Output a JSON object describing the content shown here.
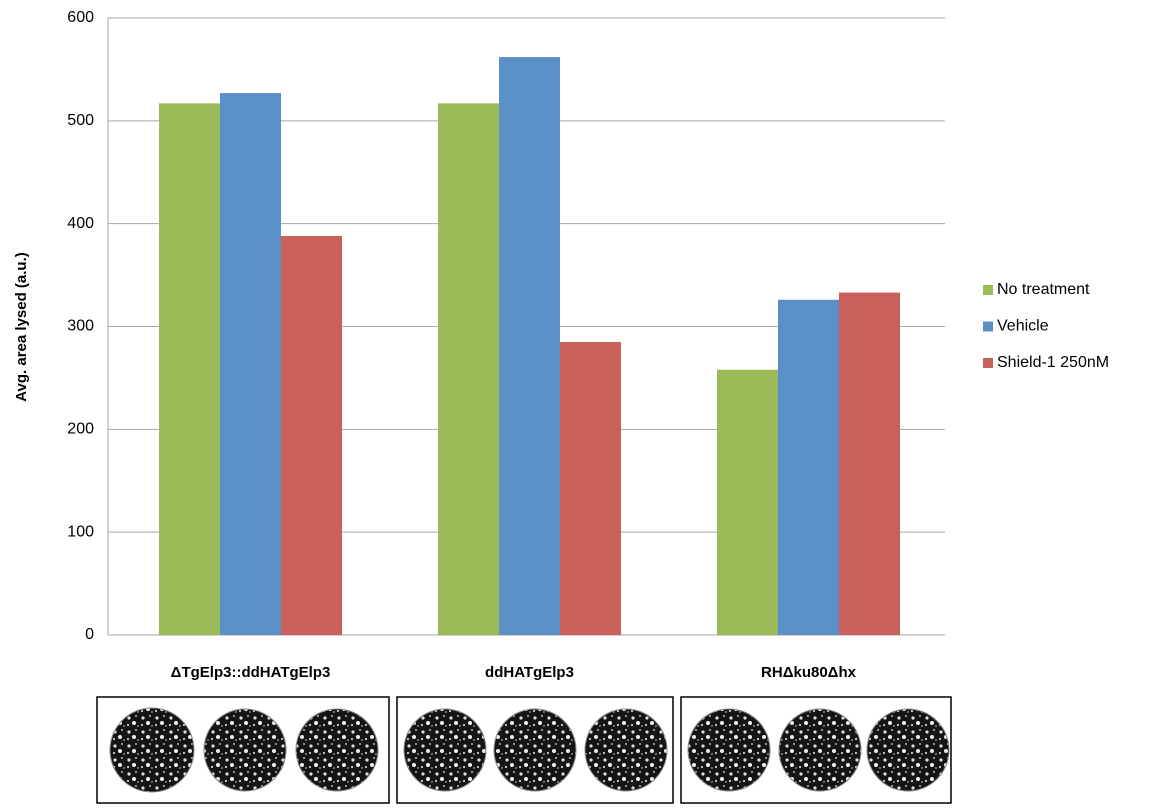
{
  "chart_data": {
    "type": "bar",
    "y_label": "Avg. area lysed (a.u.)",
    "categories": [
      "ΔTgElp3::ddHATgElp3",
      "ddHATgElp3",
      "RHΔku80Δhx"
    ],
    "series": [
      {
        "name": "No treatment",
        "color": "#9bbb59",
        "values": [
          517,
          517,
          258
        ]
      },
      {
        "name": "Vehicle",
        "color": "#5b8fc7",
        "values": [
          527,
          562,
          326
        ]
      },
      {
        "name": "Shield-1 250nM",
        "color": "#c9605a",
        "values": [
          388,
          285,
          333
        ]
      }
    ],
    "ylim": [
      0,
      600
    ],
    "yticks": [
      0,
      100,
      200,
      300,
      400,
      500,
      600
    ],
    "grid": true,
    "legend": "right"
  }
}
